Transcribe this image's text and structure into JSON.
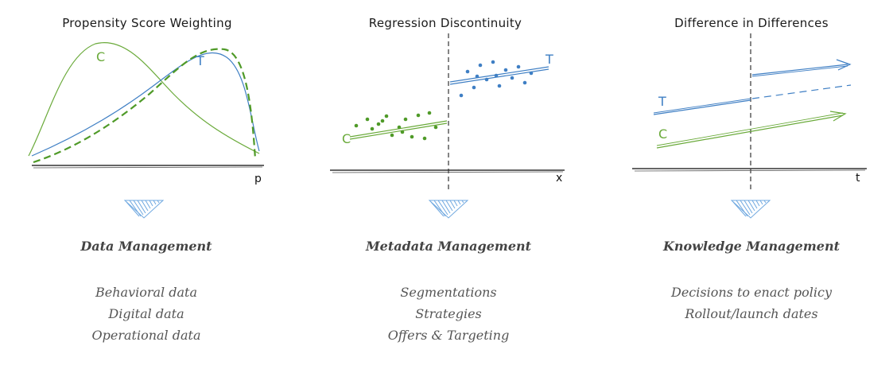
{
  "colors": {
    "treated": "#3f7fc4",
    "control": "#6aaa3a",
    "arrow": "#6fa8e0",
    "axis": "#333333"
  },
  "panels": [
    {
      "title": "Propensity Score Weighting",
      "axis_label": "p",
      "labels": {
        "control": "C",
        "treated": "T"
      },
      "heading": "Data Management",
      "items": [
        "Behavioral data",
        "Digital data",
        "Operational data"
      ]
    },
    {
      "title": "Regression Discontinuity",
      "axis_label": "x",
      "labels": {
        "control": "C",
        "treated": "T"
      },
      "heading": "Metadata Management",
      "items": [
        "Segmentations",
        "Strategies",
        "Offers & Targeting"
      ]
    },
    {
      "title": "Difference in Differences",
      "axis_label": "t",
      "labels": {
        "control": "C",
        "treated": "T"
      },
      "heading": "Knowledge Management",
      "items": [
        "Decisions to enact policy",
        "Rollout/launch dates"
      ]
    }
  ]
}
